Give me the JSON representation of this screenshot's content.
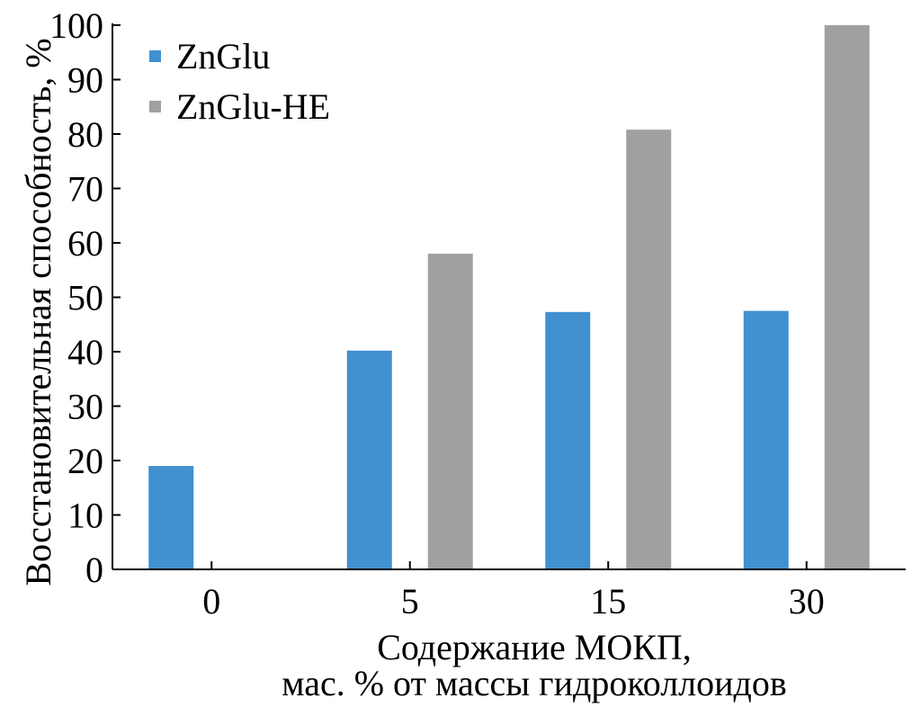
{
  "chart_data": {
    "type": "bar",
    "categories": [
      "0",
      "5",
      "15",
      "30"
    ],
    "series": [
      {
        "name": "ZnGlu",
        "color": "#4190d0",
        "values": [
          19,
          40.2,
          47.3,
          47.5
        ]
      },
      {
        "name": "ZnGlu-HE",
        "color": "#a0a0a0",
        "values": [
          null,
          58,
          80.8,
          100
        ]
      }
    ],
    "title": "",
    "xlabel": [
      "Содержание МОКП,",
      "мас. % от массы гидроколлоидов"
    ],
    "ylabel": "Восстановительная способность, %",
    "ylim": [
      0,
      100
    ],
    "yticks": [
      "0",
      "10",
      "20",
      "30",
      "40",
      "50",
      "60",
      "70",
      "80",
      "90",
      "100"
    ],
    "grid": false,
    "legend_position": "top-left"
  }
}
